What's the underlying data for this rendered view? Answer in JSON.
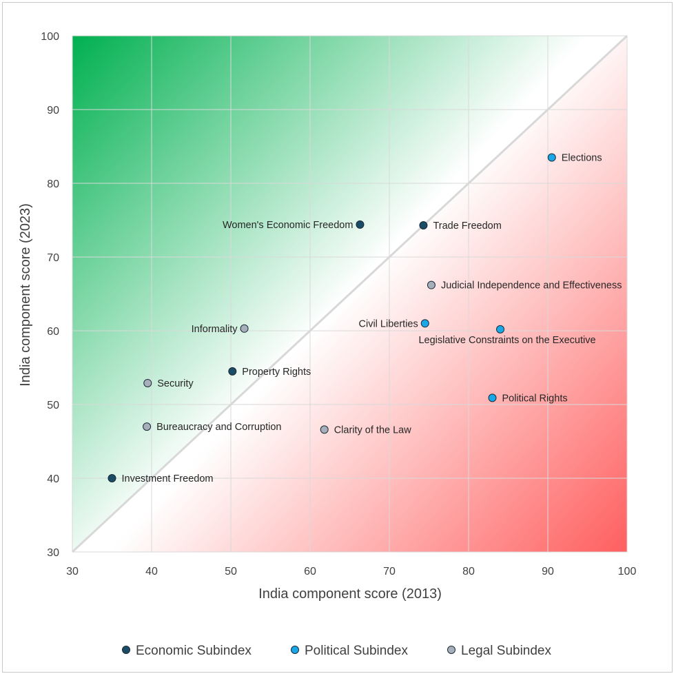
{
  "chart_data": {
    "type": "scatter",
    "title": "",
    "xlabel": "India component score (2013)",
    "ylabel": "India component score (2023)",
    "xlim": [
      30,
      100
    ],
    "ylim": [
      30,
      100
    ],
    "xticks": [
      "30",
      "40",
      "50",
      "60",
      "70",
      "80",
      "90",
      "100"
    ],
    "yticks": [
      "30",
      "40",
      "50",
      "60",
      "70",
      "80",
      "90",
      "100"
    ],
    "grid": true,
    "diagonal": "y = x reference line",
    "background": "green above diagonal, red below diagonal",
    "legend_position": "bottom",
    "colors": {
      "Economic Subindex": "#1a4c66",
      "Political Subindex": "#1aa7e8",
      "Legal Subindex": "#a7b0ba",
      "upper_gradient": "#00b050",
      "lower_gradient": "#ff5f5f",
      "diagonal": "#d8d8d8"
    },
    "series": [
      {
        "name": "Economic Subindex",
        "points": [
          {
            "label": "Women's Economic Freedom",
            "x": 66.3,
            "y": 74.4,
            "label_side": "left"
          },
          {
            "label": "Trade Freedom",
            "x": 74.3,
            "y": 74.3,
            "label_side": "right"
          },
          {
            "label": "Property Rights",
            "x": 50.2,
            "y": 54.5,
            "label_side": "right"
          },
          {
            "label": "Investment Freedom",
            "x": 35.0,
            "y": 40.0,
            "label_side": "right"
          }
        ]
      },
      {
        "name": "Political Subindex",
        "points": [
          {
            "label": "Elections",
            "x": 90.5,
            "y": 83.5,
            "label_side": "right"
          },
          {
            "label": "Civil Liberties",
            "x": 74.5,
            "y": 61.0,
            "label_side": "left"
          },
          {
            "label": "Legislative Constraints on the Executive",
            "x": 84.0,
            "y": 60.2,
            "label_side": "below"
          },
          {
            "label": "Political Rights",
            "x": 83.0,
            "y": 50.9,
            "label_side": "right"
          }
        ]
      },
      {
        "name": "Legal Subindex",
        "points": [
          {
            "label": "Judicial Independence and Effectiveness",
            "x": 75.3,
            "y": 66.2,
            "label_side": "right"
          },
          {
            "label": "Informality",
            "x": 51.7,
            "y": 60.3,
            "label_side": "left"
          },
          {
            "label": "Security",
            "x": 39.5,
            "y": 52.9,
            "label_side": "right"
          },
          {
            "label": "Bureaucracy and Corruption",
            "x": 39.4,
            "y": 47.0,
            "label_side": "right"
          },
          {
            "label": "Clarity of the Law",
            "x": 61.8,
            "y": 46.6,
            "label_side": "right"
          }
        ]
      }
    ]
  }
}
